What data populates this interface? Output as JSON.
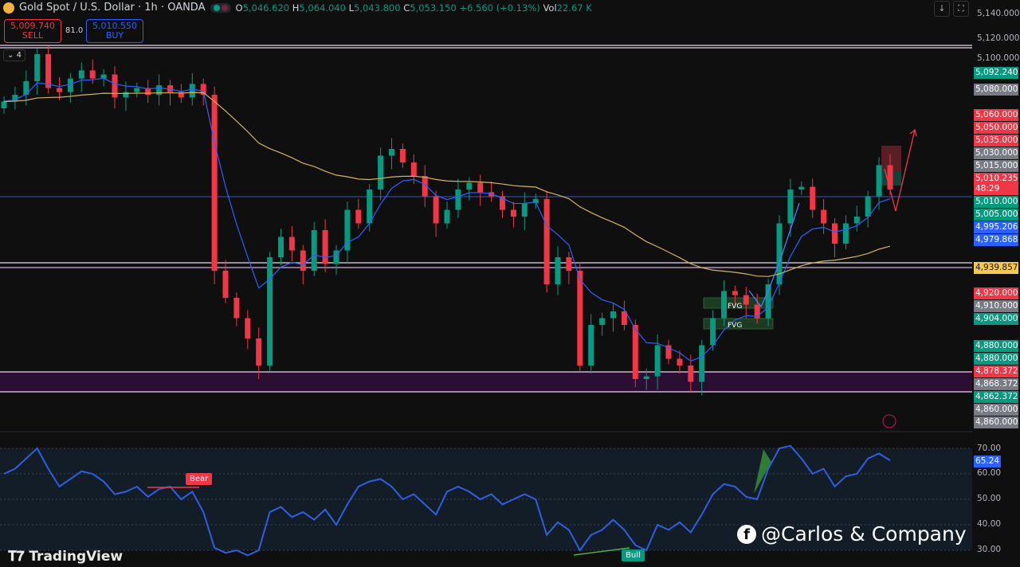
{
  "header": {
    "title": "Gold Spot / U.S. Dollar · 1h · OANDA",
    "open_label": "O",
    "open": "5,046.620",
    "high_label": "H",
    "high": "5,064.040",
    "low_label": "L",
    "low": "5,043.800",
    "close_label": "C",
    "close": "5,053.150",
    "change": "+6.560 (+0.13%)",
    "vol_label": "Vol",
    "vol": "22.67 K"
  },
  "trade": {
    "sell_price": "5,009.740",
    "sell_label": "SELL",
    "spread": "81.0",
    "buy_price": "5,010.550",
    "buy_label": "BUY"
  },
  "collapse": {
    "count": "4"
  },
  "toolbar": {
    "download_icon": "arrow-down-icon",
    "fullscreen_icon": "fullscreen-icon"
  },
  "colors": {
    "up": "#089981",
    "down": "#f23645",
    "ema_fast": "#2962ff",
    "ema_slow": "#d4b35a",
    "rsi": "#2f5fe0",
    "zone": "#2a0f33",
    "hline": "#e6d6f0"
  },
  "price_ticks": [
    "5,140.000",
    "5,120.000",
    "5,100.000"
  ],
  "price_labels": [
    {
      "text": "5,092.240",
      "color": "#089981"
    },
    {
      "text": "5,080.000",
      "color": "#787b86"
    },
    {
      "text": "5,060.000",
      "color": "#f23645"
    },
    {
      "text": "5,050.000",
      "color": "#f23645"
    },
    {
      "text": "5,035.000",
      "color": "#f23645"
    },
    {
      "text": "5,030.000",
      "color": "#787b86"
    },
    {
      "text": "5,015.000",
      "color": "#787b86"
    },
    {
      "text": "5,010.235",
      "color": "#f23645",
      "sub": "48:29"
    },
    {
      "text": "5,010.000",
      "color": "#089981"
    },
    {
      "text": "5,005.000",
      "color": "#089981"
    },
    {
      "text": "4,995.206",
      "color": "#2962ff"
    },
    {
      "text": "4,979.868",
      "color": "#2962ff"
    },
    {
      "text": "4,939.857",
      "color": "#f7c948",
      "dark": true
    },
    {
      "text": "4,920.000",
      "color": "#f23645"
    },
    {
      "text": "4,910.000",
      "color": "#787b86"
    },
    {
      "text": "4,904.000",
      "color": "#089981"
    },
    {
      "text": "4,880.000",
      "color": "#089981"
    },
    {
      "text": "4,880.000",
      "color": "#089981"
    },
    {
      "text": "4,878.372",
      "color": "#f23645"
    },
    {
      "text": "4,868.372",
      "color": "#787b86"
    },
    {
      "text": "4,862.372",
      "color": "#089981"
    },
    {
      "text": "4,860.000",
      "color": "#787b86"
    },
    {
      "text": "4,860.000",
      "color": "#787b86"
    }
  ],
  "annotations": {
    "fvg1": "FVG",
    "fvg2": "FVG",
    "bear": "Bear",
    "bull": "Bull"
  },
  "rsi_ticks": [
    "70.00",
    "60.00",
    "50.00",
    "40.00",
    "30.00"
  ],
  "rsi_value": "65.24",
  "watermark": "TradingView",
  "credit": "@Carlos & Company",
  "chart_data": {
    "type": "candlestick",
    "title": "Gold Spot / U.S. Dollar · 1h · OANDA",
    "ylim": [
      4840,
      5150
    ],
    "closes": [
      5075,
      5080,
      5090,
      5110,
      5085,
      5082,
      5092,
      5098,
      5092,
      5095,
      5078,
      5082,
      5085,
      5080,
      5087,
      5082,
      5078,
      5088,
      5080,
      4950,
      4930,
      4915,
      4900,
      4880,
      4960,
      4975,
      4965,
      4950,
      4980,
      4955,
      4965,
      4995,
      4985,
      5010,
      5035,
      5040,
      5030,
      5020,
      5005,
      4985,
      4995,
      5010,
      5015,
      5008,
      5005,
      4995,
      4990,
      5000,
      5003,
      4940,
      4960,
      4950,
      4880,
      4910,
      4915,
      4920,
      4910,
      4870,
      4872,
      4895,
      4885,
      4880,
      4868,
      4895,
      4915,
      4935,
      4932,
      4925,
      4915,
      4940,
      4985,
      5010,
      5012,
      4995,
      4985,
      4970,
      4985,
      4990,
      5005,
      5028,
      5010
    ],
    "open_first": 5070,
    "horizontal_levels": [
      5117,
      4941,
      4937,
      5000
    ],
    "zone": [
      4862.372,
      4878.372
    ],
    "rsi": {
      "ylim": [
        25,
        75
      ],
      "bands": [
        30,
        70
      ],
      "values": [
        60,
        62,
        66,
        70,
        62,
        55,
        58,
        61,
        60,
        57,
        52,
        53,
        55,
        51,
        54,
        55,
        50,
        53,
        45,
        31,
        29,
        30,
        28,
        30,
        45,
        47,
        43,
        45,
        42,
        46,
        40,
        48,
        55,
        57,
        58,
        55,
        50,
        52,
        48,
        44,
        53,
        55,
        53,
        50,
        52,
        48,
        50,
        52,
        50,
        36,
        41,
        38,
        30,
        36,
        38,
        42,
        38,
        32,
        30,
        40,
        38,
        41,
        37,
        44,
        52,
        56,
        55,
        51,
        50,
        62,
        70,
        71,
        66,
        60,
        62,
        55,
        59,
        60,
        66,
        68,
        65.24
      ]
    }
  }
}
